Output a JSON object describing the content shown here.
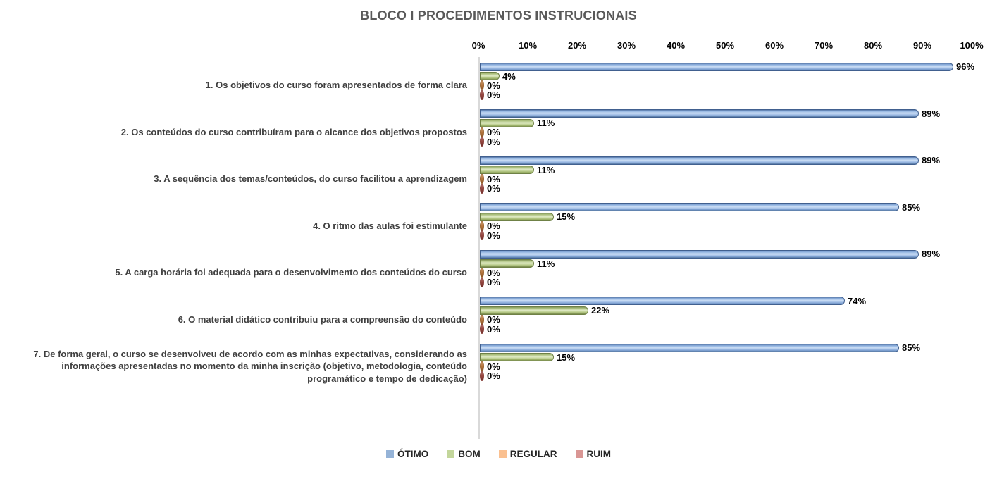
{
  "chart_data": {
    "type": "bar",
    "orientation": "horizontal",
    "title": "BLOCO I PROCEDIMENTOS INSTRUCIONAIS",
    "title_color": "#595959",
    "categories": [
      "1. Os objetivos do curso foram apresentados de forma clara",
      "2. Os conteúdos do curso contribuíram para o alcance dos objetivos propostos",
      "3. A sequência dos temas/conteúdos, do curso facilitou a aprendizagem",
      "4. O ritmo das aulas foi estimulante",
      "5. A carga horária foi adequada para o desenvolvimento dos conteúdos do curso",
      "6. O material didático contribuiu para a compreensão do conteúdo",
      "7. De forma geral, o curso se desenvolveu de acordo com as minhas expectativas, considerando as informações apresentadas no momento da minha inscrição (objetivo, metodologia, conteúdo programático e tempo de dedicação)"
    ],
    "series": [
      {
        "name": "ÓTIMO",
        "color": "#95B3D7",
        "values": [
          96,
          89,
          89,
          85,
          89,
          74,
          85
        ]
      },
      {
        "name": "BOM",
        "color": "#C3D69B",
        "values": [
          4,
          11,
          11,
          15,
          11,
          22,
          15
        ]
      },
      {
        "name": "REGULAR",
        "color": "#FAC090",
        "values": [
          0,
          0,
          0,
          0,
          0,
          0,
          0
        ]
      },
      {
        "name": "RUIM",
        "color": "#D99694",
        "values": [
          0,
          0,
          0,
          0,
          0,
          0,
          0
        ]
      }
    ],
    "x_ticks": [
      "0%",
      "10%",
      "20%",
      "30%",
      "40%",
      "50%",
      "60%",
      "70%",
      "80%",
      "90%",
      "100%"
    ],
    "xlim": [
      0,
      100
    ],
    "value_suffix": "%",
    "data_labels": true,
    "grid": false,
    "axis_position": "top",
    "legend_position": "bottom"
  }
}
